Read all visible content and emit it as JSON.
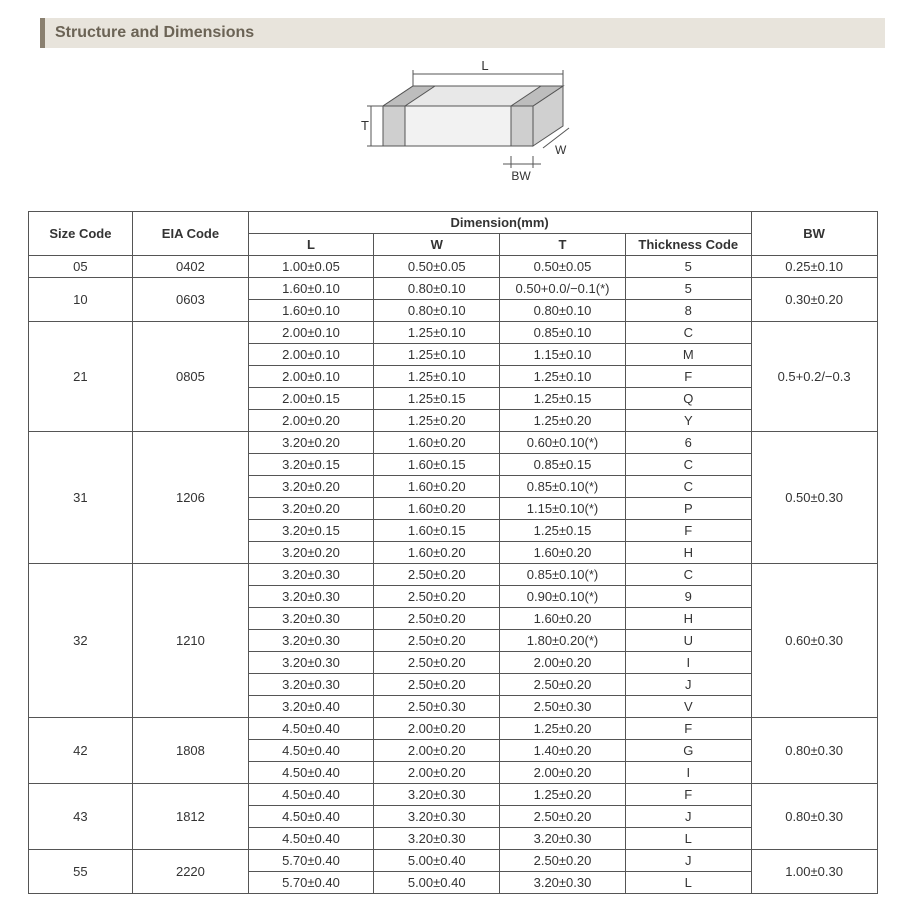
{
  "title": "Structure and Dimensions",
  "diagram": {
    "labels": {
      "L": "L",
      "W": "W",
      "T": "T",
      "BW": "BW"
    },
    "stroke": "#555555",
    "fill_top": "#e8e8e8",
    "fill_side": "#d0d0d0",
    "fill_front": "#f2f2f2"
  },
  "table": {
    "header1": {
      "size": "Size Code",
      "eia": "EIA Code",
      "dim": "Dimension(mm)"
    },
    "header2": {
      "L": "L",
      "W": "W",
      "T": "T",
      "thk": "Thickness  Code",
      "BW": "BW"
    },
    "groups": [
      {
        "size": "05",
        "eia": "0402",
        "bw": "0.25±0.10",
        "rows": [
          {
            "L": "1.00±0.05",
            "W": "0.50±0.05",
            "T": "0.50±0.05",
            "thk": "5"
          }
        ]
      },
      {
        "size": "10",
        "eia": "0603",
        "bw": "0.30±0.20",
        "rows": [
          {
            "L": "1.60±0.10",
            "W": "0.80±0.10",
            "T": "0.50+0.0/−0.1(*)",
            "thk": "5"
          },
          {
            "L": "1.60±0.10",
            "W": "0.80±0.10",
            "T": "0.80±0.10",
            "thk": "8"
          }
        ]
      },
      {
        "size": "21",
        "eia": "0805",
        "bw": "0.5+0.2/−0.3",
        "rows": [
          {
            "L": "2.00±0.10",
            "W": "1.25±0.10",
            "T": "0.85±0.10",
            "thk": "C"
          },
          {
            "L": "2.00±0.10",
            "W": "1.25±0.10",
            "T": "1.15±0.10",
            "thk": "M"
          },
          {
            "L": "2.00±0.10",
            "W": "1.25±0.10",
            "T": "1.25±0.10",
            "thk": "F"
          },
          {
            "L": "2.00±0.15",
            "W": "1.25±0.15",
            "T": "1.25±0.15",
            "thk": "Q"
          },
          {
            "L": "2.00±0.20",
            "W": "1.25±0.20",
            "T": "1.25±0.20",
            "thk": "Y"
          }
        ]
      },
      {
        "size": "31",
        "eia": "1206",
        "bw": "0.50±0.30",
        "rows": [
          {
            "L": "3.20±0.20",
            "W": "1.60±0.20",
            "T": "0.60±0.10(*)",
            "thk": "6"
          },
          {
            "L": "3.20±0.15",
            "W": "1.60±0.15",
            "T": "0.85±0.15",
            "thk": "C"
          },
          {
            "L": "3.20±0.20",
            "W": "1.60±0.20",
            "T": "0.85±0.10(*)",
            "thk": "C"
          },
          {
            "L": "3.20±0.20",
            "W": "1.60±0.20",
            "T": "1.15±0.10(*)",
            "thk": "P"
          },
          {
            "L": "3.20±0.15",
            "W": "1.60±0.15",
            "T": "1.25±0.15",
            "thk": "F"
          },
          {
            "L": "3.20±0.20",
            "W": "1.60±0.20",
            "T": "1.60±0.20",
            "thk": "H"
          }
        ]
      },
      {
        "size": "32",
        "eia": "1210",
        "bw": "0.60±0.30",
        "rows": [
          {
            "L": "3.20±0.30",
            "W": "2.50±0.20",
            "T": "0.85±0.10(*)",
            "thk": "C"
          },
          {
            "L": "3.20±0.30",
            "W": "2.50±0.20",
            "T": "0.90±0.10(*)",
            "thk": "9"
          },
          {
            "L": "3.20±0.30",
            "W": "2.50±0.20",
            "T": "1.60±0.20",
            "thk": "H"
          },
          {
            "L": "3.20±0.30",
            "W": "2.50±0.20",
            "T": "1.80±0.20(*)",
            "thk": "U"
          },
          {
            "L": "3.20±0.30",
            "W": "2.50±0.20",
            "T": "2.00±0.20",
            "thk": "I"
          },
          {
            "L": "3.20±0.30",
            "W": "2.50±0.20",
            "T": "2.50±0.20",
            "thk": "J"
          },
          {
            "L": "3.20±0.40",
            "W": "2.50±0.30",
            "T": "2.50±0.30",
            "thk": "V"
          }
        ]
      },
      {
        "size": "42",
        "eia": "1808",
        "bw": "0.80±0.30",
        "rows": [
          {
            "L": "4.50±0.40",
            "W": "2.00±0.20",
            "T": "1.25±0.20",
            "thk": "F"
          },
          {
            "L": "4.50±0.40",
            "W": "2.00±0.20",
            "T": "1.40±0.20",
            "thk": "G"
          },
          {
            "L": "4.50±0.40",
            "W": "2.00±0.20",
            "T": "2.00±0.20",
            "thk": "I"
          }
        ]
      },
      {
        "size": "43",
        "eia": "1812",
        "bw": "0.80±0.30",
        "rows": [
          {
            "L": "4.50±0.40",
            "W": "3.20±0.30",
            "T": "1.25±0.20",
            "thk": "F"
          },
          {
            "L": "4.50±0.40",
            "W": "3.20±0.30",
            "T": "2.50±0.20",
            "thk": "J"
          },
          {
            "L": "4.50±0.40",
            "W": "3.20±0.30",
            "T": "3.20±0.30",
            "thk": "L"
          }
        ]
      },
      {
        "size": "55",
        "eia": "2220",
        "bw": "1.00±0.30",
        "rows": [
          {
            "L": "5.70±0.40",
            "W": "5.00±0.40",
            "T": "2.50±0.20",
            "thk": "J"
          },
          {
            "L": "5.70±0.40",
            "W": "5.00±0.40",
            "T": "3.20±0.30",
            "thk": "L"
          }
        ]
      }
    ]
  }
}
